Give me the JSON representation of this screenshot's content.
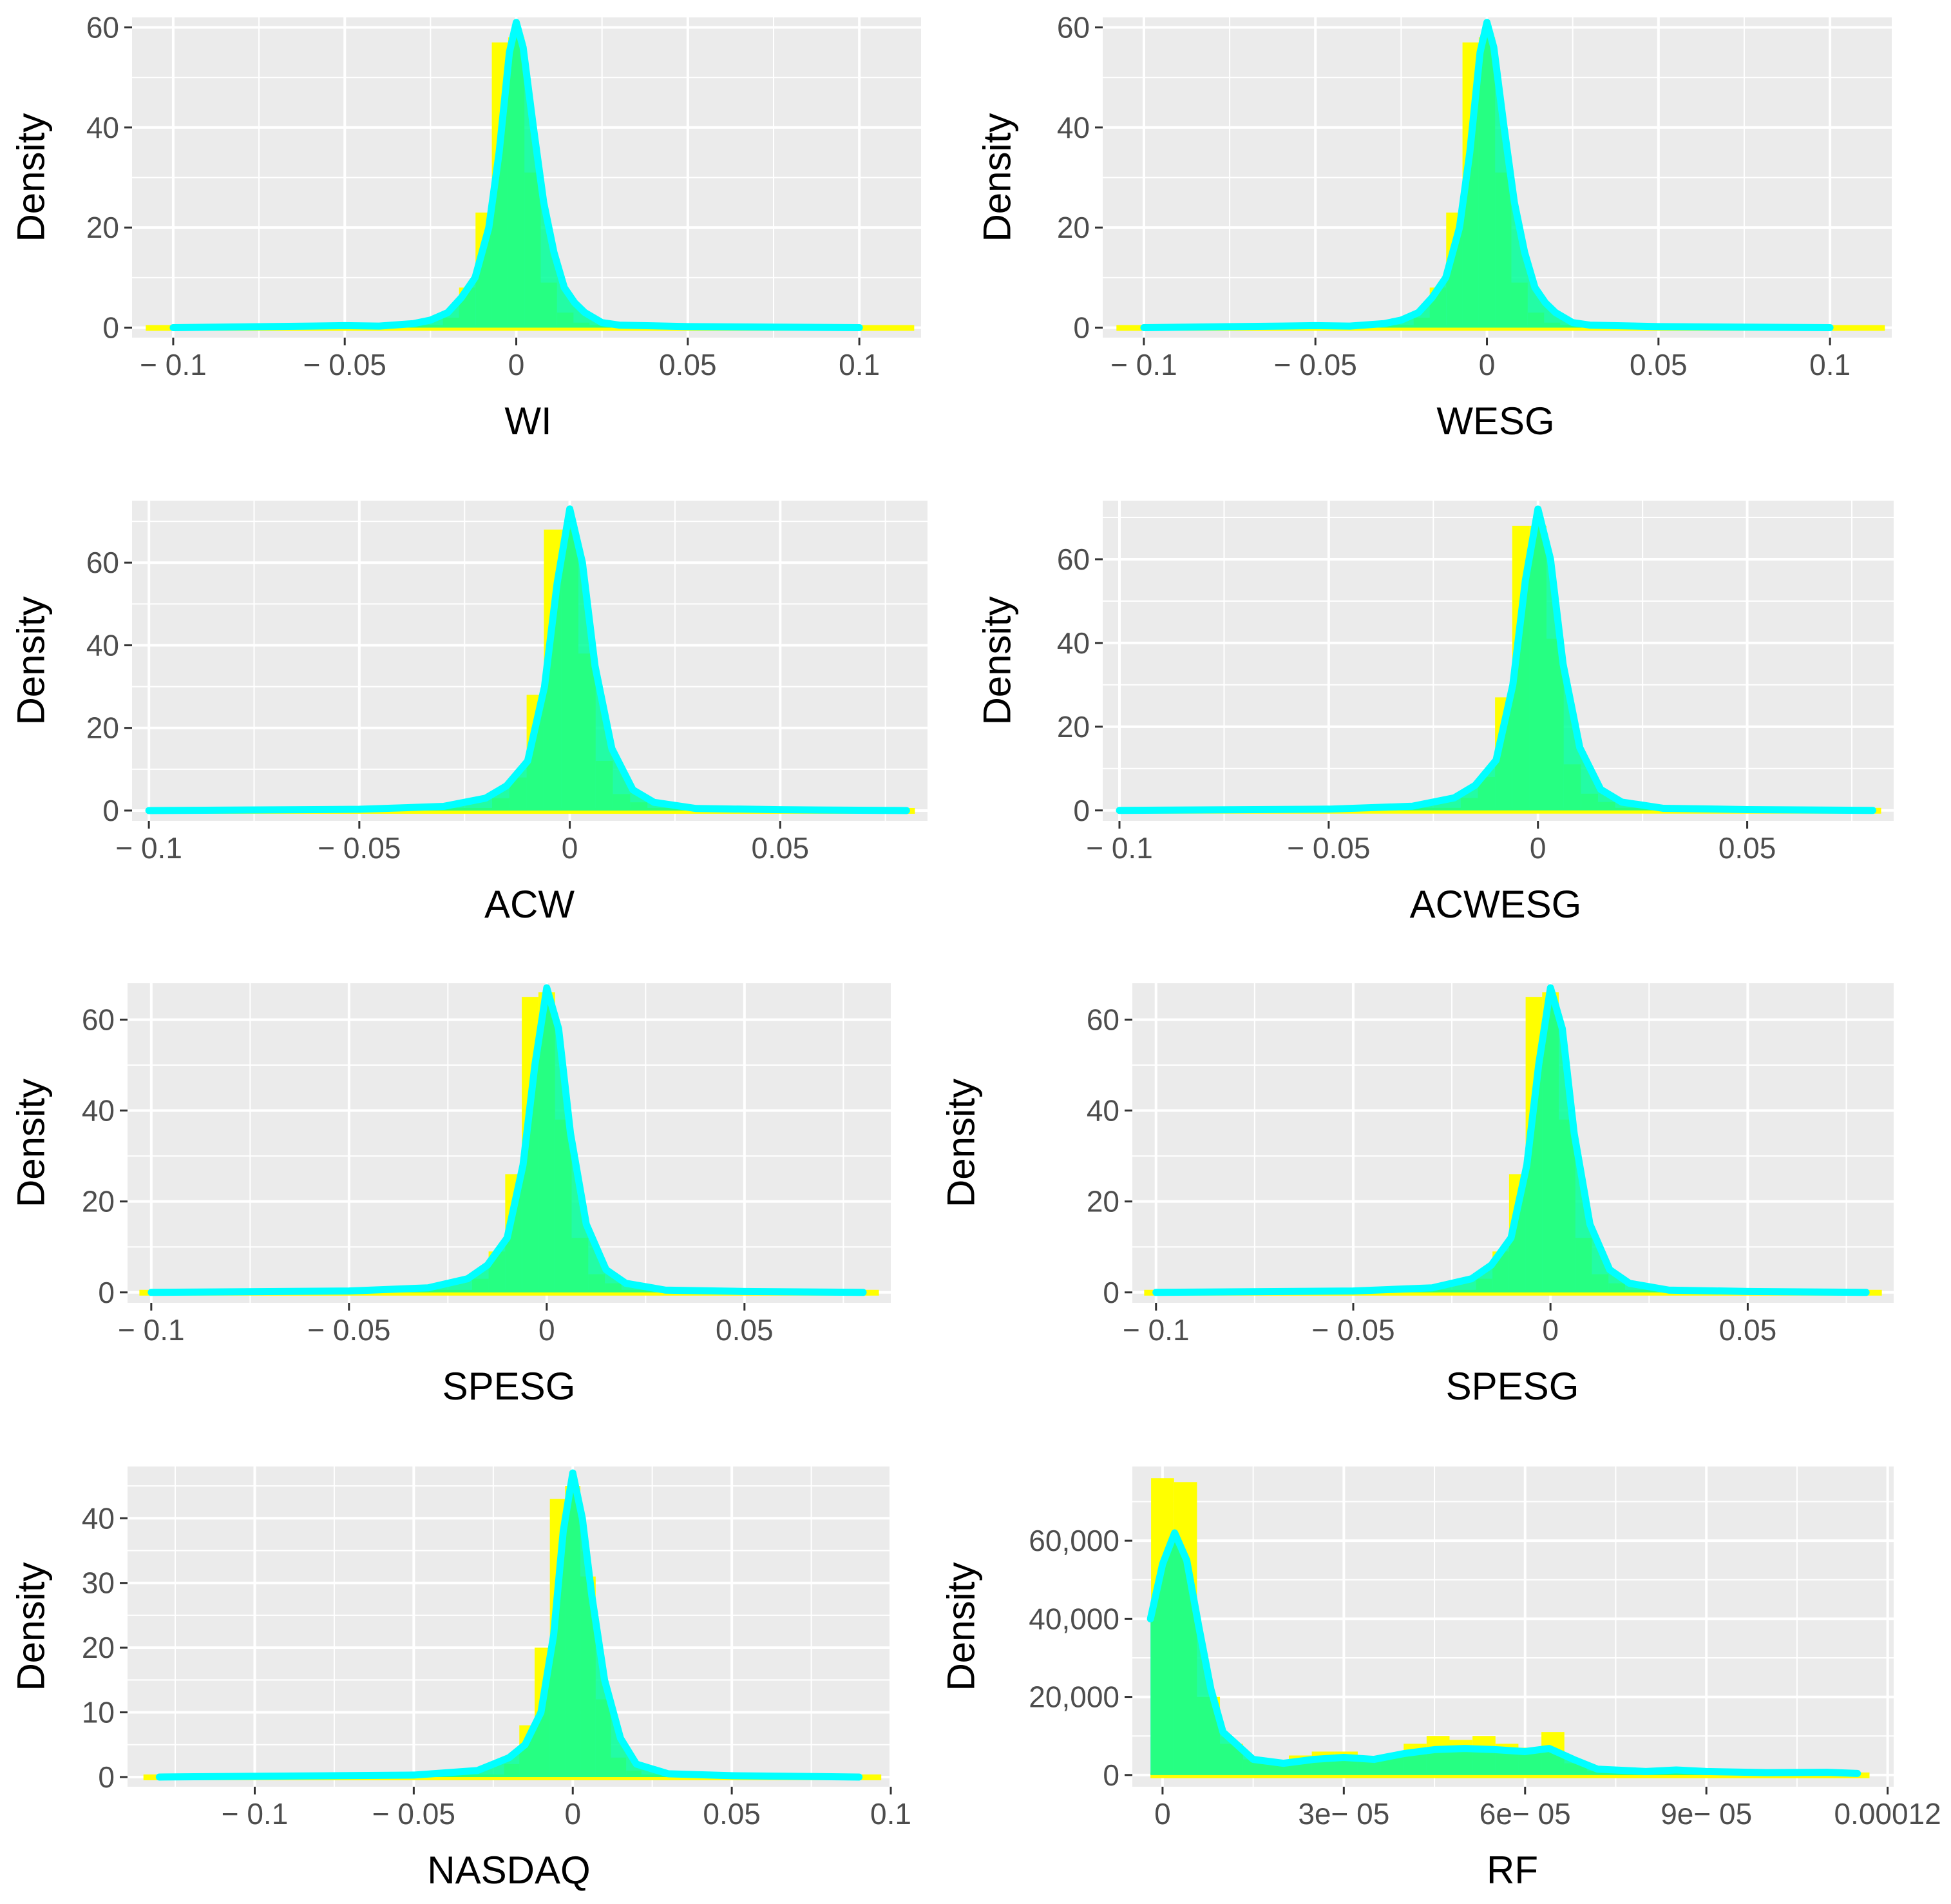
{
  "figure": {
    "ylabel": "Density",
    "fill_colors": {
      "histogram": "#ffff00",
      "density_fill": "#00ff99",
      "density_line": "#00ffff",
      "panel_bg": "#ebebeb",
      "grid": "#ffffff"
    }
  },
  "chart_data": [
    {
      "id": "wi",
      "type": "histogram+density",
      "xlabel": "WI",
      "ylabel": "Density",
      "xlim": [
        -0.112,
        0.118
      ],
      "ylim": [
        -2,
        62
      ],
      "xticks": [
        -0.1,
        -0.05,
        0,
        0.05,
        0.1
      ],
      "xtick_labels": [
        "− 0.1",
        "− 0.05",
        "0",
        "0.05",
        "0.1"
      ],
      "yticks": [
        0,
        20,
        40,
        60
      ],
      "ytick_labels": [
        "0",
        "20",
        "40",
        "60"
      ],
      "range": [
        -0.108,
        0.116
      ],
      "binwidth": 0.00475,
      "peak": 61,
      "bars": [
        [
          -0.0095,
          23
        ],
        [
          -0.00475,
          57
        ],
        [
          0,
          58
        ],
        [
          0.00475,
          31
        ],
        [
          0.0095,
          9
        ],
        [
          -0.0143,
          8
        ],
        [
          0.0143,
          3
        ],
        [
          -0.019,
          2
        ],
        [
          0.019,
          1
        ]
      ],
      "curve": [
        [
          -0.1,
          0
        ],
        [
          -0.06,
          0.3
        ],
        [
          -0.05,
          0.4
        ],
        [
          -0.04,
          0.3
        ],
        [
          -0.03,
          0.8
        ],
        [
          -0.025,
          1.5
        ],
        [
          -0.02,
          3
        ],
        [
          -0.016,
          6
        ],
        [
          -0.012,
          10
        ],
        [
          -0.008,
          20
        ],
        [
          -0.005,
          35
        ],
        [
          -0.002,
          55
        ],
        [
          0,
          61
        ],
        [
          0.002,
          56
        ],
        [
          0.005,
          40
        ],
        [
          0.008,
          25
        ],
        [
          0.011,
          15
        ],
        [
          0.014,
          8
        ],
        [
          0.017,
          5
        ],
        [
          0.02,
          3
        ],
        [
          0.025,
          1
        ],
        [
          0.03,
          0.5
        ],
        [
          0.05,
          0.2
        ],
        [
          0.1,
          0
        ]
      ]
    },
    {
      "id": "wesg",
      "type": "histogram+density",
      "xlabel": "WESG",
      "ylabel": "Density",
      "xlim": [
        -0.112,
        0.118
      ],
      "ylim": [
        -2,
        62
      ],
      "xticks": [
        -0.1,
        -0.05,
        0,
        0.05,
        0.1
      ],
      "xtick_labels": [
        "− 0.1",
        "− 0.05",
        "0",
        "0.05",
        "0.1"
      ],
      "yticks": [
        0,
        20,
        40,
        60
      ],
      "ytick_labels": [
        "0",
        "20",
        "40",
        "60"
      ],
      "range": [
        -0.108,
        0.116
      ],
      "binwidth": 0.00475,
      "peak": 61,
      "bars": [
        [
          -0.0095,
          23
        ],
        [
          -0.00475,
          57
        ],
        [
          0,
          58
        ],
        [
          0.00475,
          31
        ],
        [
          0.0095,
          9
        ],
        [
          -0.0143,
          8
        ],
        [
          0.0143,
          3
        ],
        [
          -0.019,
          2
        ],
        [
          0.019,
          1
        ]
      ],
      "curve": [
        [
          -0.1,
          0
        ],
        [
          -0.06,
          0.3
        ],
        [
          -0.05,
          0.4
        ],
        [
          -0.04,
          0.3
        ],
        [
          -0.03,
          0.8
        ],
        [
          -0.025,
          1.5
        ],
        [
          -0.02,
          3
        ],
        [
          -0.016,
          6
        ],
        [
          -0.012,
          10
        ],
        [
          -0.008,
          20
        ],
        [
          -0.005,
          35
        ],
        [
          -0.002,
          55
        ],
        [
          0,
          61
        ],
        [
          0.002,
          56
        ],
        [
          0.005,
          40
        ],
        [
          0.008,
          25
        ],
        [
          0.011,
          15
        ],
        [
          0.014,
          8
        ],
        [
          0.017,
          5
        ],
        [
          0.02,
          3
        ],
        [
          0.025,
          1
        ],
        [
          0.03,
          0.5
        ],
        [
          0.05,
          0.2
        ],
        [
          0.1,
          0
        ]
      ]
    },
    {
      "id": "acw",
      "type": "histogram+density",
      "xlabel": "ACW",
      "ylabel": "Density",
      "xlim": [
        -0.104,
        0.085
      ],
      "ylim": [
        -2.5,
        75
      ],
      "xticks": [
        -0.1,
        -0.05,
        0,
        0.05
      ],
      "xtick_labels": [
        "− 0.1",
        "− 0.05",
        "0",
        "0.05"
      ],
      "yticks": [
        0,
        20,
        40,
        60
      ],
      "ytick_labels": [
        "0",
        "20",
        "40",
        "60"
      ],
      "range": [
        -0.1,
        0.082
      ],
      "binwidth": 0.0041,
      "peak": 73,
      "bars": [
        [
          -0.0082,
          28
        ],
        [
          -0.0041,
          68
        ],
        [
          0,
          68
        ],
        [
          0.0041,
          38
        ],
        [
          0.0082,
          12
        ],
        [
          -0.0123,
          8
        ],
        [
          0.0123,
          4
        ],
        [
          -0.0164,
          3
        ],
        [
          0.0164,
          2
        ]
      ],
      "curve": [
        [
          -0.1,
          0
        ],
        [
          -0.05,
          0.3
        ],
        [
          -0.03,
          1
        ],
        [
          -0.02,
          3
        ],
        [
          -0.015,
          6
        ],
        [
          -0.01,
          12
        ],
        [
          -0.006,
          30
        ],
        [
          -0.003,
          55
        ],
        [
          0,
          73
        ],
        [
          0.003,
          60
        ],
        [
          0.006,
          35
        ],
        [
          0.01,
          15
        ],
        [
          0.015,
          5
        ],
        [
          0.02,
          2
        ],
        [
          0.03,
          0.5
        ],
        [
          0.05,
          0.2
        ],
        [
          0.08,
          0
        ]
      ]
    },
    {
      "id": "acwesg",
      "type": "histogram+density",
      "xlabel": "ACWESG",
      "ylabel": "Density",
      "xlim": [
        -0.104,
        0.085
      ],
      "ylim": [
        -2.5,
        74
      ],
      "xticks": [
        -0.1,
        -0.05,
        0,
        0.05
      ],
      "xtick_labels": [
        "− 0.1",
        "− 0.05",
        "0",
        "0.05"
      ],
      "yticks": [
        0,
        20,
        40,
        60
      ],
      "ytick_labels": [
        "0",
        "20",
        "40",
        "60"
      ],
      "range": [
        -0.1,
        0.082
      ],
      "binwidth": 0.0041,
      "peak": 72,
      "bars": [
        [
          -0.0082,
          27
        ],
        [
          -0.0041,
          68
        ],
        [
          0,
          68
        ],
        [
          0.0041,
          41
        ],
        [
          0.0082,
          11
        ],
        [
          -0.0123,
          8
        ],
        [
          0.0123,
          4
        ],
        [
          -0.0164,
          3
        ],
        [
          0.0164,
          2
        ]
      ],
      "curve": [
        [
          -0.1,
          0
        ],
        [
          -0.05,
          0.3
        ],
        [
          -0.03,
          1
        ],
        [
          -0.02,
          3
        ],
        [
          -0.015,
          6
        ],
        [
          -0.01,
          12
        ],
        [
          -0.006,
          30
        ],
        [
          -0.003,
          55
        ],
        [
          0,
          72
        ],
        [
          0.003,
          60
        ],
        [
          0.006,
          35
        ],
        [
          0.01,
          15
        ],
        [
          0.015,
          5
        ],
        [
          0.02,
          2
        ],
        [
          0.03,
          0.5
        ],
        [
          0.05,
          0.2
        ],
        [
          0.08,
          0
        ]
      ]
    },
    {
      "id": "spesg-1",
      "type": "histogram+density",
      "xlabel": "SPESG",
      "ylabel": "Density",
      "xlim": [
        -0.106,
        0.087
      ],
      "ylim": [
        -2.3,
        68
      ],
      "xticks": [
        -0.1,
        -0.05,
        0,
        0.05
      ],
      "xtick_labels": [
        "− 0.1",
        "− 0.05",
        "0",
        "0.05"
      ],
      "yticks": [
        0,
        20,
        40,
        60
      ],
      "ytick_labels": [
        "0",
        "20",
        "40",
        "60"
      ],
      "range": [
        -0.103,
        0.084
      ],
      "binwidth": 0.0042,
      "peak": 67,
      "bars": [
        [
          -0.0084,
          26
        ],
        [
          -0.0042,
          65
        ],
        [
          0,
          66
        ],
        [
          0.0042,
          38
        ],
        [
          0.0084,
          12
        ],
        [
          -0.0126,
          9
        ],
        [
          0.0126,
          4
        ],
        [
          -0.0168,
          3
        ],
        [
          0.0168,
          2
        ]
      ],
      "curve": [
        [
          -0.1,
          0
        ],
        [
          -0.05,
          0.3
        ],
        [
          -0.03,
          1
        ],
        [
          -0.02,
          3
        ],
        [
          -0.015,
          6
        ],
        [
          -0.01,
          12
        ],
        [
          -0.006,
          28
        ],
        [
          -0.003,
          50
        ],
        [
          0,
          67
        ],
        [
          0.003,
          58
        ],
        [
          0.006,
          35
        ],
        [
          0.01,
          15
        ],
        [
          0.015,
          5
        ],
        [
          0.02,
          2
        ],
        [
          0.03,
          0.5
        ],
        [
          0.05,
          0.2
        ],
        [
          0.08,
          0
        ]
      ]
    },
    {
      "id": "spesg-2",
      "type": "histogram+density",
      "xlabel": "SPESG",
      "ylabel": "Density",
      "xlim": [
        -0.106,
        0.087
      ],
      "ylim": [
        -2.3,
        68
      ],
      "xticks": [
        -0.1,
        -0.05,
        0,
        0.05
      ],
      "xtick_labels": [
        "− 0.1",
        "− 0.05",
        "0",
        "0.05"
      ],
      "yticks": [
        0,
        20,
        40,
        60
      ],
      "ytick_labels": [
        "0",
        "20",
        "40",
        "60"
      ],
      "range": [
        -0.103,
        0.084
      ],
      "binwidth": 0.0042,
      "peak": 67,
      "bars": [
        [
          -0.0084,
          26
        ],
        [
          -0.0042,
          65
        ],
        [
          0,
          66
        ],
        [
          0.0042,
          38
        ],
        [
          0.0084,
          12
        ],
        [
          -0.0126,
          9
        ],
        [
          0.0126,
          4
        ],
        [
          -0.0168,
          3
        ],
        [
          0.0168,
          2
        ]
      ],
      "curve": [
        [
          -0.1,
          0
        ],
        [
          -0.05,
          0.3
        ],
        [
          -0.03,
          1
        ],
        [
          -0.02,
          3
        ],
        [
          -0.015,
          6
        ],
        [
          -0.01,
          12
        ],
        [
          -0.006,
          28
        ],
        [
          -0.003,
          50
        ],
        [
          0,
          67
        ],
        [
          0.003,
          58
        ],
        [
          0.006,
          35
        ],
        [
          0.01,
          15
        ],
        [
          0.015,
          5
        ],
        [
          0.02,
          2
        ],
        [
          0.03,
          0.5
        ],
        [
          0.05,
          0.2
        ],
        [
          0.08,
          0
        ]
      ]
    },
    {
      "id": "nasdaq",
      "type": "histogram+density",
      "xlabel": "NASDAQ",
      "ylabel": "Density",
      "xlim": [
        -0.14,
        0.1
      ],
      "ylim": [
        -1.5,
        48
      ],
      "xticks": [
        -0.1,
        -0.05,
        0,
        0.05,
        0.1
      ],
      "xtick_labels": [
        "− 0.1",
        "− 0.05",
        "0",
        "0.05",
        "0.1"
      ],
      "yticks": [
        0,
        10,
        20,
        30,
        40
      ],
      "ytick_labels": [
        "0",
        "10",
        "20",
        "30",
        "40"
      ],
      "range": [
        -0.135,
        0.097
      ],
      "binwidth": 0.0048,
      "peak": 47,
      "bars": [
        [
          -0.0096,
          20
        ],
        [
          -0.0048,
          43
        ],
        [
          0,
          45
        ],
        [
          0.0048,
          31
        ],
        [
          0.0096,
          12
        ],
        [
          -0.0144,
          8
        ],
        [
          0.0144,
          3
        ],
        [
          -0.0192,
          2
        ],
        [
          0.0192,
          1
        ]
      ],
      "curve": [
        [
          -0.13,
          0
        ],
        [
          -0.05,
          0.3
        ],
        [
          -0.03,
          1
        ],
        [
          -0.02,
          3
        ],
        [
          -0.015,
          5
        ],
        [
          -0.01,
          10
        ],
        [
          -0.006,
          22
        ],
        [
          -0.003,
          38
        ],
        [
          0,
          47
        ],
        [
          0.003,
          40
        ],
        [
          0.006,
          28
        ],
        [
          0.01,
          15
        ],
        [
          0.015,
          6
        ],
        [
          0.02,
          2
        ],
        [
          0.03,
          0.5
        ],
        [
          0.05,
          0.2
        ],
        [
          0.09,
          0
        ]
      ]
    },
    {
      "id": "rf",
      "type": "histogram+density",
      "xlabel": "RF",
      "ylabel": "Density",
      "xlim": [
        -5e-06,
        0.000121
      ],
      "ylim": [
        -3000,
        79000
      ],
      "xticks": [
        0,
        3e-05,
        6e-05,
        9e-05,
        0.00012
      ],
      "xtick_labels": [
        "0",
        "3e− 05",
        "6e− 05",
        "9e− 05",
        "0.00012"
      ],
      "yticks": [
        0,
        20000,
        40000,
        60000
      ],
      "ytick_labels": [
        "0",
        "20,000",
        "40,000",
        "60,000"
      ],
      "range": [
        -2e-06,
        0.000117
      ],
      "binwidth": 3.8e-06,
      "peak": 62000,
      "bars": [
        [
          0,
          76000
        ],
        [
          3.8e-06,
          75000
        ],
        [
          7.6e-06,
          20000
        ],
        [
          1.14e-05,
          8000
        ],
        [
          1.52e-05,
          4000
        ],
        [
          1.9e-05,
          3000
        ],
        [
          2.28e-05,
          5000
        ],
        [
          2.66e-05,
          6000
        ],
        [
          3.04e-05,
          6000
        ],
        [
          3.42e-05,
          4000
        ],
        [
          3.8e-05,
          5000
        ],
        [
          4.18e-05,
          8000
        ],
        [
          4.56e-05,
          10000
        ],
        [
          4.94e-05,
          9000
        ],
        [
          5.32e-05,
          10000
        ],
        [
          5.7e-05,
          8000
        ],
        [
          6.08e-05,
          7000
        ],
        [
          6.46e-05,
          11000
        ],
        [
          6.84e-05,
          3000
        ],
        [
          7.22e-05,
          1000
        ],
        [
          7.6e-05,
          800
        ],
        [
          7.98e-05,
          1200
        ],
        [
          8.36e-05,
          1500
        ],
        [
          8.74e-05,
          1200
        ],
        [
          9.12e-05,
          800
        ],
        [
          9.5e-05,
          500
        ],
        [
          9.88e-05,
          800
        ],
        [
          0.0001026,
          1000
        ],
        [
          0.0001064,
          800
        ],
        [
          0.0001102,
          600
        ],
        [
          0.000114,
          500
        ]
      ],
      "curve": [
        [
          -2e-06,
          40000
        ],
        [
          0,
          54000
        ],
        [
          2e-06,
          62000
        ],
        [
          4e-06,
          55000
        ],
        [
          6e-06,
          38000
        ],
        [
          8e-06,
          22000
        ],
        [
          1e-05,
          11000
        ],
        [
          1.5e-05,
          4000
        ],
        [
          2e-05,
          3000
        ],
        [
          2.5e-05,
          4000
        ],
        [
          3e-05,
          4500
        ],
        [
          3.5e-05,
          4000
        ],
        [
          4e-05,
          5500
        ],
        [
          4.5e-05,
          6500
        ],
        [
          5e-05,
          6800
        ],
        [
          5.5e-05,
          6500
        ],
        [
          6e-05,
          6000
        ],
        [
          6.4e-05,
          6800
        ],
        [
          6.8e-05,
          4000
        ],
        [
          7.2e-05,
          1500
        ],
        [
          8e-05,
          900
        ],
        [
          8.5e-05,
          1300
        ],
        [
          9e-05,
          900
        ],
        [
          0.0001,
          600
        ],
        [
          0.00011,
          700
        ],
        [
          0.000115,
          400
        ]
      ]
    }
  ]
}
